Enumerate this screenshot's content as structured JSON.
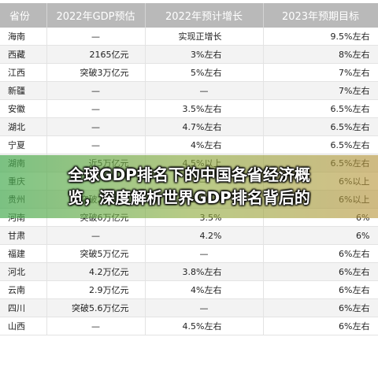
{
  "table": {
    "headers": [
      "省份",
      "2022年GDP预估",
      "2022年预计增长",
      "2023年预期目标"
    ],
    "rows": [
      {
        "province": "海南",
        "gdp": "—",
        "growth": "实现正增长",
        "target": "9.5%左右"
      },
      {
        "province": "西藏",
        "gdp": "2165亿元",
        "growth": "3%左右",
        "target": "8%左右"
      },
      {
        "province": "江西",
        "gdp": "突破3万亿元",
        "growth": "5%左右",
        "target": "7%左右"
      },
      {
        "province": "新疆",
        "gdp": "—",
        "growth": "—",
        "target": "7%左右"
      },
      {
        "province": "安徽",
        "gdp": "—",
        "growth": "3.5%左右",
        "target": "6.5%左右"
      },
      {
        "province": "湖北",
        "gdp": "—",
        "growth": "4.7%左右",
        "target": "6.5%左右"
      },
      {
        "province": "宁夏",
        "gdp": "—",
        "growth": "4%左右",
        "target": "6.5%左右"
      },
      {
        "province": "湖南",
        "gdp": "近5万亿元",
        "growth": "4.5%以上",
        "target": "6.5%左右"
      },
      {
        "province": "重庆",
        "gdp": "—",
        "growth": "—",
        "target": "6%以上"
      },
      {
        "province": "贵州",
        "gdp": "突破2万亿元",
        "growth": "2%左右",
        "target": "6%以上"
      },
      {
        "province": "河南",
        "gdp": "突破6万亿元",
        "growth": "3.5%",
        "target": "6%"
      },
      {
        "province": "甘肃",
        "gdp": "—",
        "growth": "4.2%",
        "target": "6%"
      },
      {
        "province": "福建",
        "gdp": "突破5万亿元",
        "growth": "—",
        "target": "6%左右"
      },
      {
        "province": "河北",
        "gdp": "4.2万亿元",
        "growth": "3.8%左右",
        "target": "6%左右"
      },
      {
        "province": "云南",
        "gdp": "2.9万亿元",
        "growth": "4%左右",
        "target": "6%左右"
      },
      {
        "province": "四川",
        "gdp": "突破5.6万亿元",
        "growth": "—",
        "target": "6%左右"
      },
      {
        "province": "山西",
        "gdp": "—",
        "growth": "4.5%左右",
        "target": "6%左右"
      }
    ]
  },
  "banner": {
    "line1": "全球GDP排名下的中国各省经济概",
    "line2": "览，深度解析世界GDP排名背后的"
  }
}
